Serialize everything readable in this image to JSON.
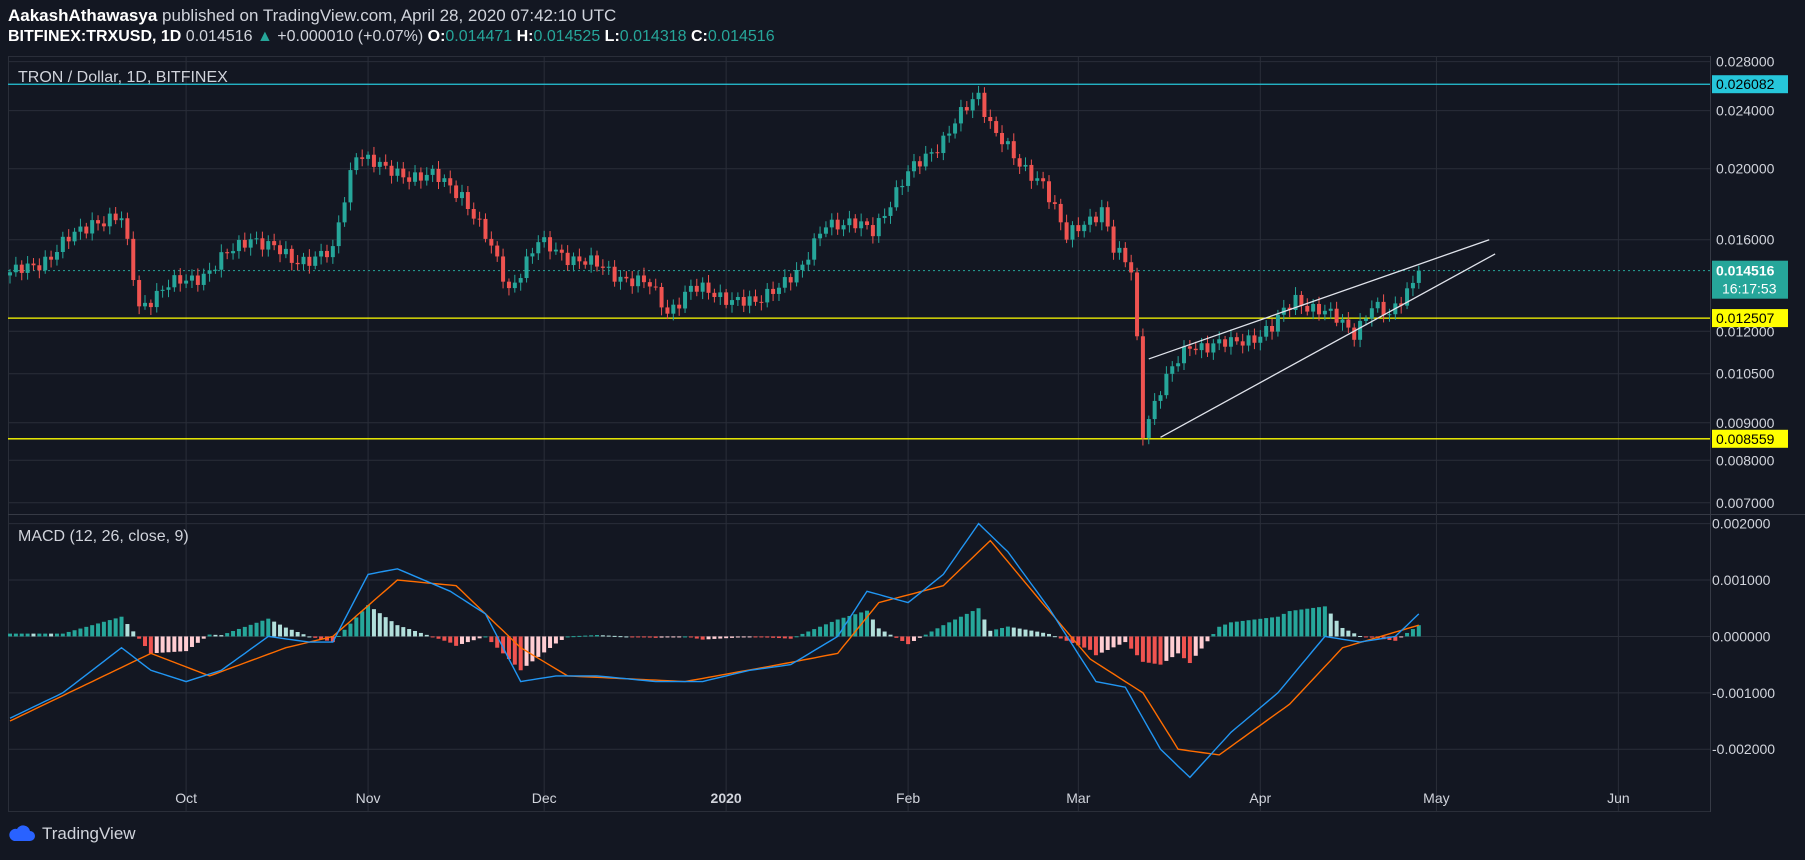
{
  "header": {
    "author": "AakashAthawasya",
    "published_text": "published on TradingView.com, April 28, 2020 07:42:10 UTC",
    "symbol": "BITFINEX:TRXUSD, 1D",
    "price": "0.014516",
    "change": "+0.000010 (+0.07%)",
    "o_label": "O:",
    "o_value": "0.014471",
    "h_label": "H:",
    "h_value": "0.014525",
    "l_label": "L:",
    "l_value": "0.014318",
    "c_label": "C:",
    "c_value": "0.014516"
  },
  "footer": {
    "brand": "TradingView"
  },
  "colors": {
    "background": "#131722",
    "grid": "#2a2e39",
    "up": "#26a69a",
    "down": "#ef5350",
    "level_cyan": "#26c6da",
    "level_yellow": "#ffff00",
    "macd": "#2196f3",
    "signal": "#ff6d00",
    "hist_up_strong": "#26a69a",
    "hist_up_weak": "#b2dfdb",
    "hist_down_strong": "#ef5350",
    "hist_down_weak": "#ffcdd2"
  },
  "chart_data": [
    {
      "type": "candlestick",
      "title": "TRON / Dollar, 1D, BITFINEX",
      "y_ticks": [
        "0.028000",
        "0.024000",
        "0.020000",
        "0.016000",
        "0.012000",
        "0.010500",
        "0.009000",
        "0.008000",
        "0.007000"
      ],
      "x_ticks": [
        "Oct",
        "Nov",
        "Dec",
        "2020",
        "Feb",
        "Mar",
        "Apr",
        "May",
        "Jun"
      ],
      "ylim": [
        0.0068,
        0.0285
      ],
      "log_scale": true,
      "grid": true,
      "horizontal_levels": [
        {
          "value": 0.026082,
          "label": "0.026082",
          "color": "cyan"
        },
        {
          "value": 0.012507,
          "label": "0.012507",
          "color": "yellow"
        },
        {
          "value": 0.008559,
          "label": "0.008559",
          "color": "yellow"
        }
      ],
      "last_price": {
        "value": 0.014516,
        "label": "0.014516",
        "countdown": "16:17:53"
      },
      "wedge_lines": [
        {
          "from": [
            "2020-03-13",
            0.011
          ],
          "to": [
            "2020-05-10",
            0.016
          ]
        },
        {
          "from": [
            "2020-03-15",
            0.0086
          ],
          "to": [
            "2020-05-11",
            0.0153
          ]
        }
      ],
      "anchors": [
        [
          "2019-09-01",
          0.0143
        ],
        [
          "2019-09-08",
          0.0152
        ],
        [
          "2019-09-15",
          0.017
        ],
        [
          "2019-09-20",
          0.017
        ],
        [
          "2019-09-23",
          0.013
        ],
        [
          "2019-09-28",
          0.0138
        ],
        [
          "2019-10-05",
          0.0145
        ],
        [
          "2019-10-12",
          0.0162
        ],
        [
          "2019-10-19",
          0.015
        ],
        [
          "2019-10-26",
          0.0153
        ],
        [
          "2019-10-30",
          0.0212
        ],
        [
          "2019-11-04",
          0.0198
        ],
        [
          "2019-11-12",
          0.0195
        ],
        [
          "2019-11-17",
          0.0185
        ],
        [
          "2019-11-22",
          0.0155
        ],
        [
          "2019-11-25",
          0.0137
        ],
        [
          "2019-11-30",
          0.0158
        ],
        [
          "2019-12-07",
          0.015
        ],
        [
          "2019-12-14",
          0.0143
        ],
        [
          "2019-12-19",
          0.0138
        ],
        [
          "2019-12-22",
          0.0128
        ],
        [
          "2019-12-26",
          0.0137
        ],
        [
          "2020-01-01",
          0.0134
        ],
        [
          "2020-01-06",
          0.013
        ],
        [
          "2020-01-10",
          0.014
        ],
        [
          "2020-01-14",
          0.0145
        ],
        [
          "2020-01-18",
          0.017
        ],
        [
          "2020-01-26",
          0.0165
        ],
        [
          "2020-02-01",
          0.0196
        ],
        [
          "2020-02-07",
          0.022
        ],
        [
          "2020-02-13",
          0.0252
        ],
        [
          "2020-02-15",
          0.0232
        ],
        [
          "2020-02-20",
          0.02
        ],
        [
          "2020-02-24",
          0.0193
        ],
        [
          "2020-02-28",
          0.016
        ],
        [
          "2020-03-05",
          0.0177
        ],
        [
          "2020-03-07",
          0.0155
        ],
        [
          "2020-03-10",
          0.0145
        ],
        [
          "2020-03-12",
          0.0088
        ],
        [
          "2020-03-15",
          0.01
        ],
        [
          "2020-03-20",
          0.0115
        ],
        [
          "2020-03-27",
          0.0115
        ],
        [
          "2020-04-03",
          0.0121
        ],
        [
          "2020-04-07",
          0.0133
        ],
        [
          "2020-04-12",
          0.0127
        ],
        [
          "2020-04-17",
          0.012
        ],
        [
          "2020-04-20",
          0.013
        ],
        [
          "2020-04-23",
          0.0125
        ],
        [
          "2020-04-28",
          0.014516
        ]
      ]
    },
    {
      "type": "macd",
      "title": "MACD (12, 26, close, 9)",
      "y_ticks": [
        "0.002000",
        "0.001000",
        "0.000000",
        "-0.001000",
        "-0.002000"
      ],
      "ylim": [
        -0.0029,
        0.0021
      ],
      "macd_anchors": [
        [
          "2019-09-01",
          -0.00145
        ],
        [
          "2019-09-10",
          -0.001
        ],
        [
          "2019-09-20",
          -0.0002
        ],
        [
          "2019-09-25",
          -0.0006
        ],
        [
          "2019-10-01",
          -0.0008
        ],
        [
          "2019-10-07",
          -0.0006
        ],
        [
          "2019-10-15",
          0.0
        ],
        [
          "2019-10-22",
          -0.0001
        ],
        [
          "2019-10-26",
          -0.0001
        ],
        [
          "2019-11-01",
          0.0011
        ],
        [
          "2019-11-06",
          0.0012
        ],
        [
          "2019-11-15",
          0.0008
        ],
        [
          "2019-11-21",
          0.0004
        ],
        [
          "2019-11-27",
          -0.0008
        ],
        [
          "2019-12-03",
          -0.0007
        ],
        [
          "2019-12-10",
          -0.0007
        ],
        [
          "2019-12-20",
          -0.0008
        ],
        [
          "2019-12-28",
          -0.0008
        ],
        [
          "2020-01-05",
          -0.0006
        ],
        [
          "2020-01-12",
          -0.0005
        ],
        [
          "2020-01-20",
          0.0
        ],
        [
          "2020-01-25",
          0.0008
        ],
        [
          "2020-02-01",
          0.0006
        ],
        [
          "2020-02-07",
          0.0011
        ],
        [
          "2020-02-13",
          0.002
        ],
        [
          "2020-02-18",
          0.0015
        ],
        [
          "2020-02-25",
          0.0005
        ],
        [
          "2020-03-04",
          -0.0008
        ],
        [
          "2020-03-09",
          -0.0009
        ],
        [
          "2020-03-15",
          -0.002
        ],
        [
          "2020-03-20",
          -0.0025
        ],
        [
          "2020-03-27",
          -0.0017
        ],
        [
          "2020-04-04",
          -0.001
        ],
        [
          "2020-04-12",
          0.0
        ],
        [
          "2020-04-18",
          -0.0001
        ],
        [
          "2020-04-24",
          0.0
        ],
        [
          "2020-04-28",
          0.0004
        ]
      ],
      "signal_anchors": [
        [
          "2019-09-01",
          -0.0015
        ],
        [
          "2019-09-15",
          -0.0008
        ],
        [
          "2019-09-25",
          -0.0003
        ],
        [
          "2019-10-05",
          -0.0007
        ],
        [
          "2019-10-18",
          -0.0002
        ],
        [
          "2019-10-26",
          0.0
        ],
        [
          "2019-11-06",
          0.001
        ],
        [
          "2019-11-16",
          0.0009
        ],
        [
          "2019-11-27",
          -0.0002
        ],
        [
          "2019-12-05",
          -0.0007
        ],
        [
          "2019-12-25",
          -0.0008
        ],
        [
          "2020-01-10",
          -0.0005
        ],
        [
          "2020-01-20",
          -0.0003
        ],
        [
          "2020-01-27",
          0.0006
        ],
        [
          "2020-02-07",
          0.0009
        ],
        [
          "2020-02-15",
          0.0017
        ],
        [
          "2020-02-23",
          0.0007
        ],
        [
          "2020-03-03",
          -0.0004
        ],
        [
          "2020-03-12",
          -0.001
        ],
        [
          "2020-03-18",
          -0.002
        ],
        [
          "2020-03-25",
          -0.0021
        ],
        [
          "2020-04-06",
          -0.0012
        ],
        [
          "2020-04-15",
          -0.0002
        ],
        [
          "2020-04-28",
          0.0002
        ]
      ]
    }
  ]
}
